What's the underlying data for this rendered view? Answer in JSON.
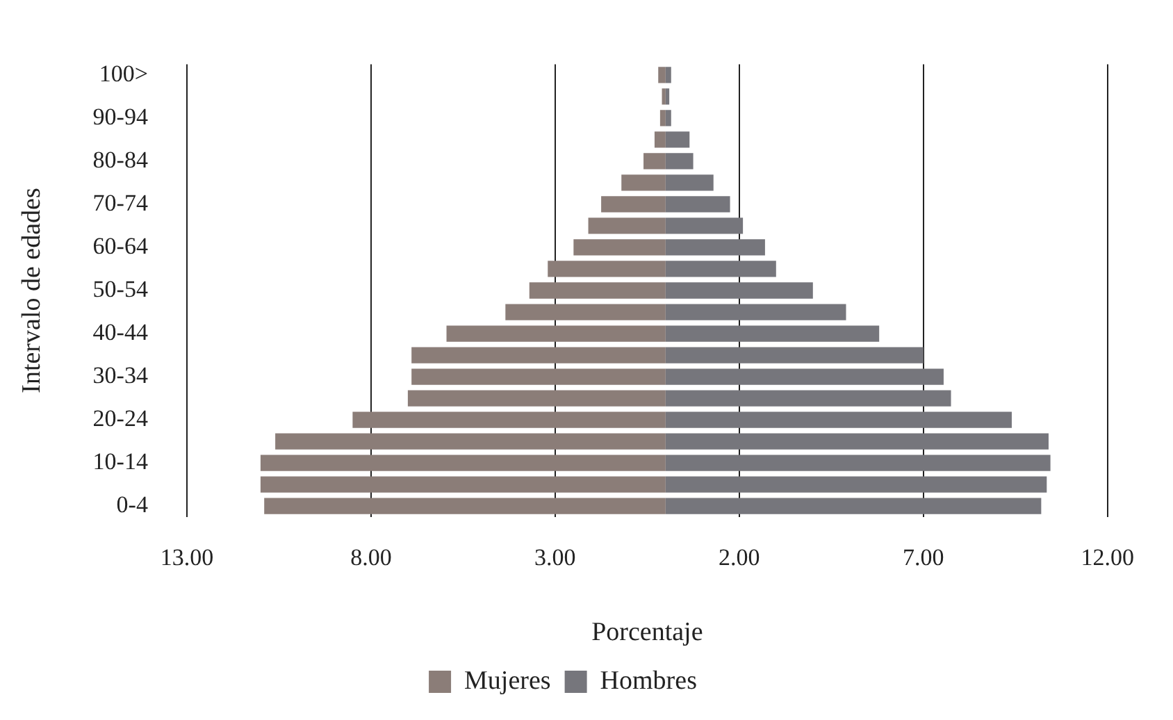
{
  "chart_data": {
    "type": "bar",
    "orientation": "horizontal",
    "stacked": true,
    "xlabel": "Porcentaje",
    "ylabel": "Intervalo de edades",
    "categories": [
      "100>",
      null,
      "90-94",
      null,
      "80-84",
      null,
      "70-74",
      null,
      "60-64",
      null,
      "50-54",
      null,
      "40-44",
      null,
      "30-34",
      null,
      "20-24",
      null,
      "10-14",
      null,
      "0-4"
    ],
    "series": [
      {
        "name": "Mujeres",
        "color": "#8b7d78",
        "values": [
          -0.2,
          -0.1,
          -0.15,
          -0.3,
          -0.6,
          -1.2,
          -1.75,
          -2.1,
          -2.5,
          -3.2,
          -3.7,
          -4.35,
          -5.95,
          -6.9,
          -6.9,
          -7.0,
          -8.5,
          -10.6,
          -11.0,
          -11.0,
          -10.9
        ]
      },
      {
        "name": "Hombres",
        "color": "#76767c",
        "values": [
          0.15,
          0.1,
          0.15,
          0.65,
          0.75,
          1.3,
          1.75,
          2.1,
          2.7,
          3.0,
          4.0,
          4.9,
          5.8,
          7.0,
          7.55,
          7.75,
          9.4,
          10.4,
          10.45,
          10.35,
          10.2
        ]
      }
    ],
    "xlim": [
      -13,
      12
    ],
    "xticks": [
      {
        "value": -13,
        "label": "13.00"
      },
      {
        "value": -8,
        "label": "8.00"
      },
      {
        "value": -3,
        "label": "3.00"
      },
      {
        "value": 2,
        "label": "2.00"
      },
      {
        "value": 7,
        "label": "7.00"
      },
      {
        "value": 12,
        "label": "12.00"
      }
    ],
    "grid": "x",
    "legend": "bottom"
  }
}
